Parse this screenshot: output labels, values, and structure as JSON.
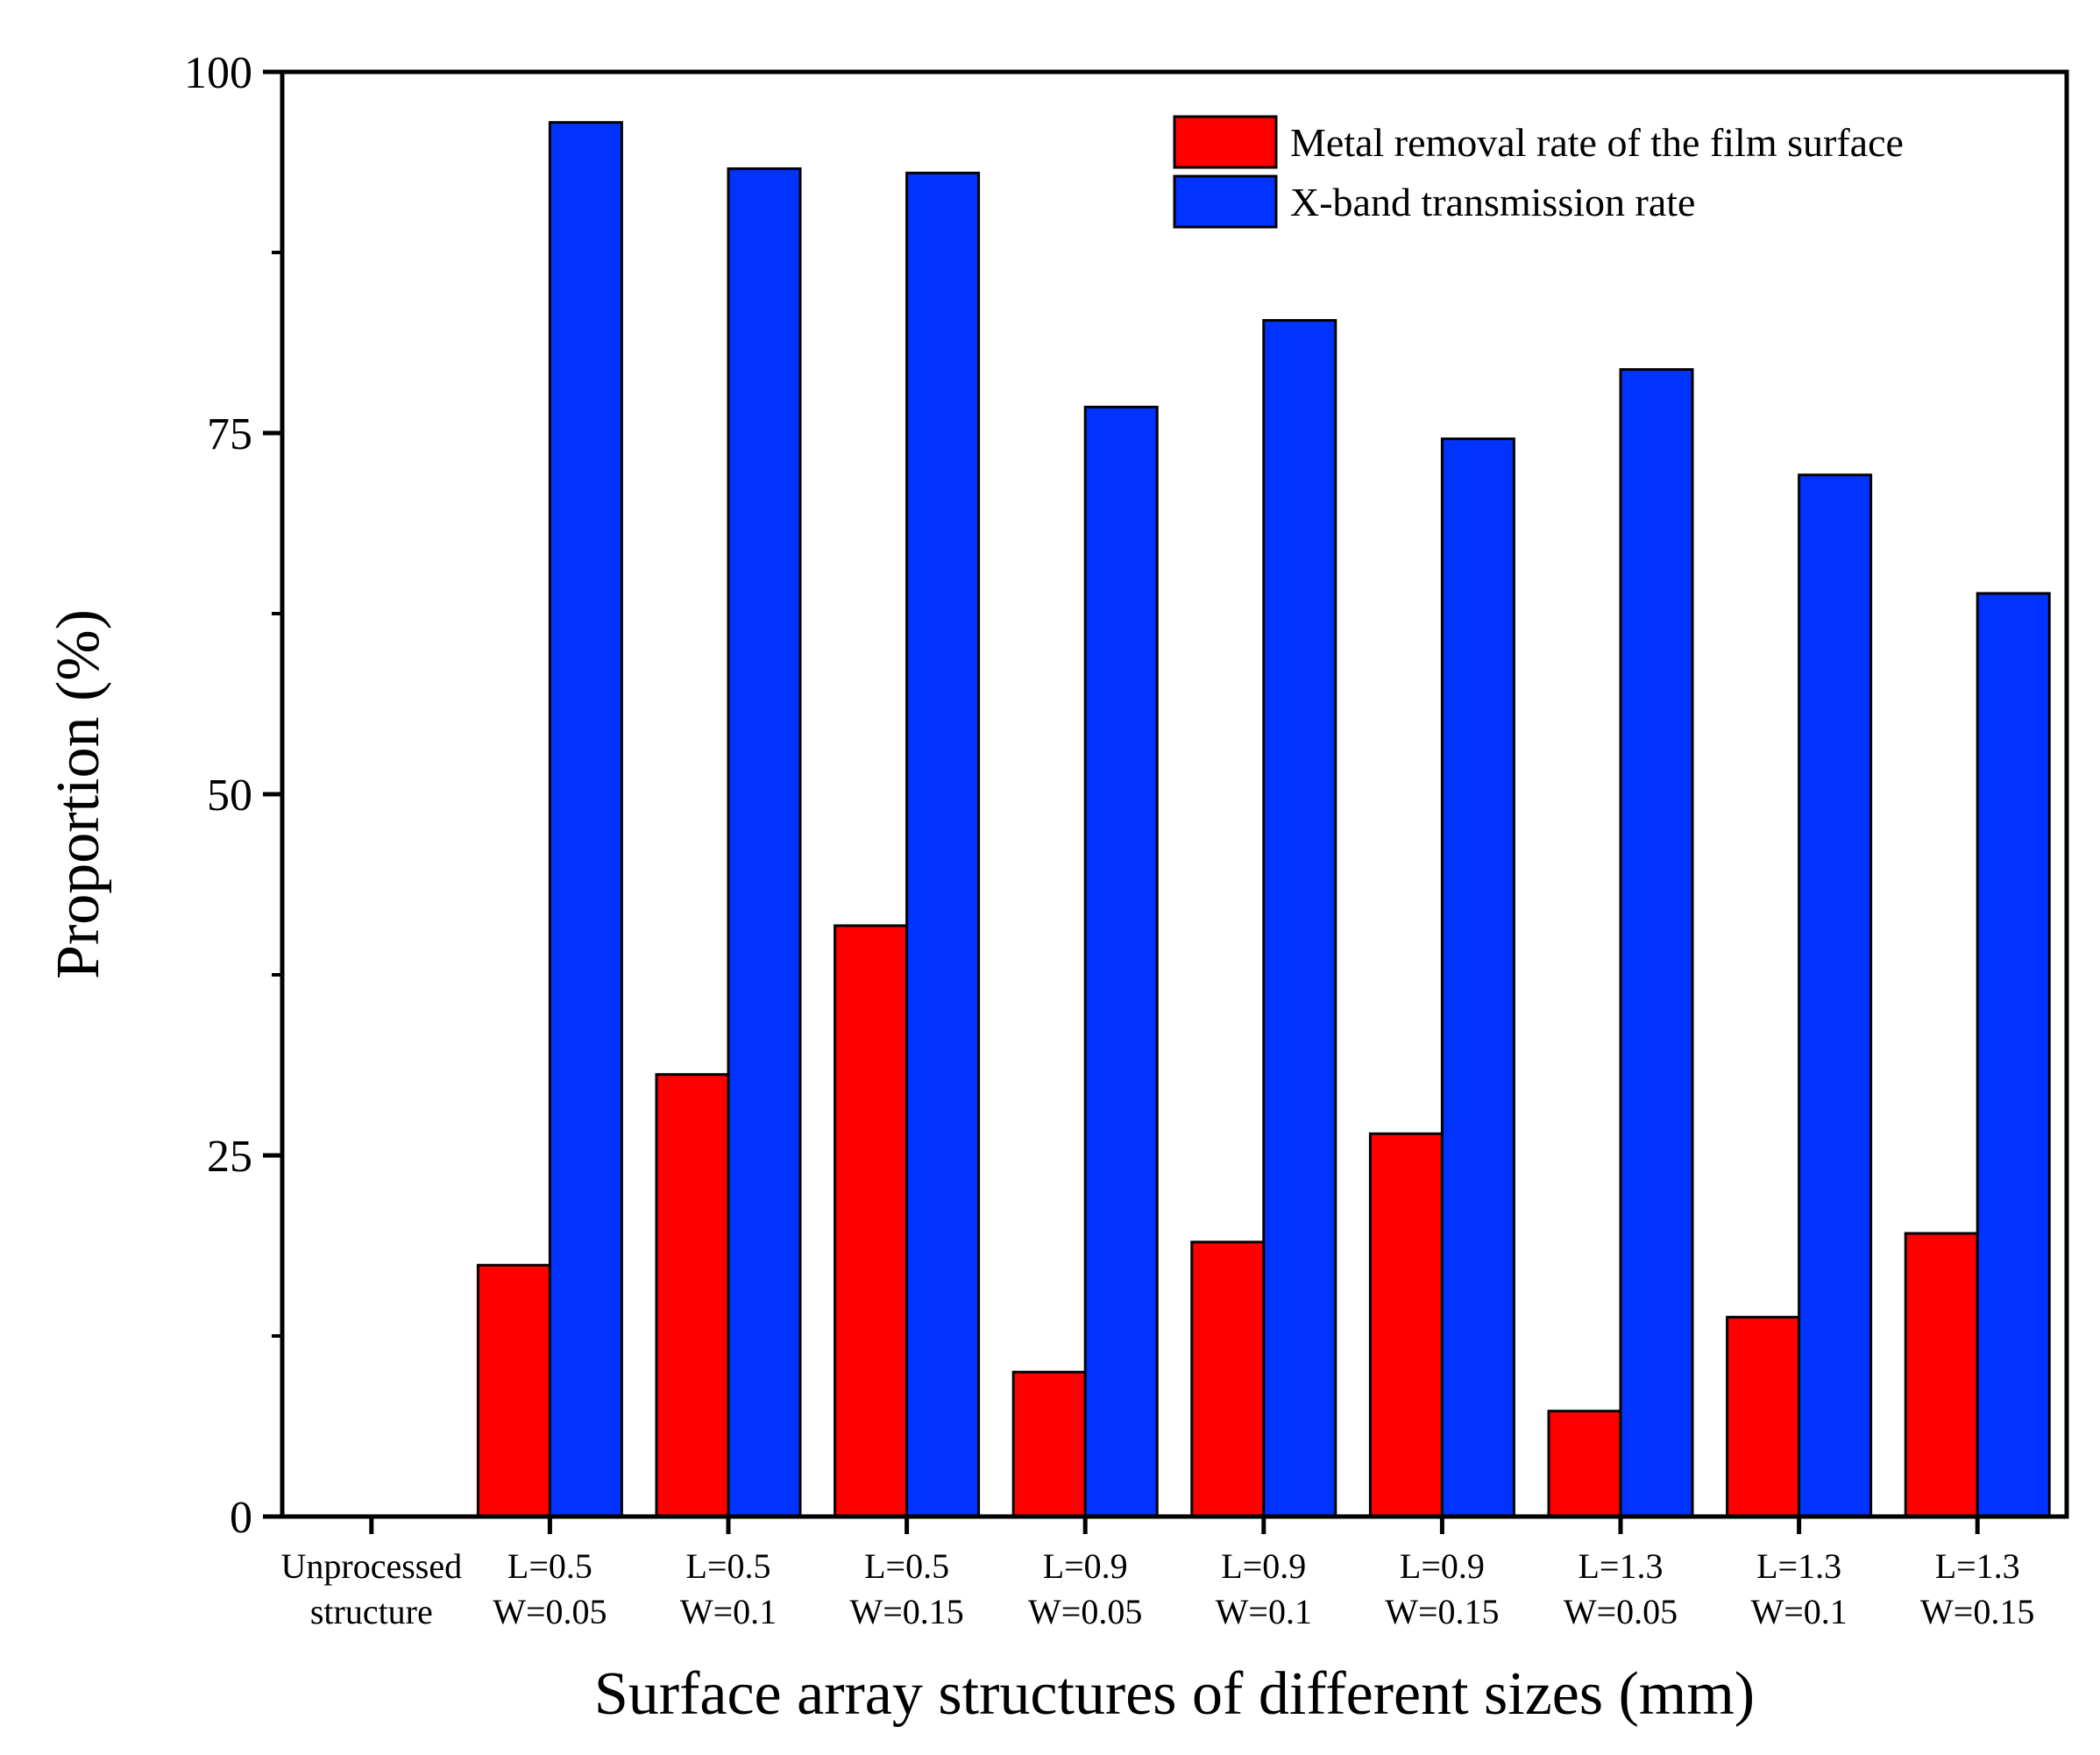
{
  "chart_data": {
    "type": "bar",
    "title": "",
    "xlabel": "Surface array structures of different sizes (mm)",
    "ylabel": "Proportion (%)",
    "ylim": [
      0,
      100
    ],
    "yticks": [
      0,
      25,
      50,
      75,
      100
    ],
    "grid": false,
    "legend_position": "top-right",
    "categories": [
      [
        "Unprocessed",
        "structure"
      ],
      [
        "L=0.5",
        "W=0.05"
      ],
      [
        "L=0.5",
        "W=0.1"
      ],
      [
        "L=0.5",
        "W=0.15"
      ],
      [
        "L=0.9",
        "W=0.05"
      ],
      [
        "L=0.9",
        "W=0.1"
      ],
      [
        "L=0.9",
        "W=0.15"
      ],
      [
        "L=1.3",
        "W=0.05"
      ],
      [
        "L=1.3",
        "W=0.1"
      ],
      [
        "L=1.3",
        "W=0.15"
      ]
    ],
    "series": [
      {
        "name": "Metal removal rate of the film surface",
        "color": "#ff0000",
        "values": [
          0,
          17.4,
          30.6,
          40.9,
          10.0,
          19.0,
          26.5,
          7.3,
          13.8,
          19.6
        ]
      },
      {
        "name": "X-band transmission rate",
        "color": "#0033ff",
        "values": [
          0,
          96.5,
          93.3,
          93.0,
          76.8,
          82.8,
          74.6,
          79.4,
          72.1,
          63.9
        ]
      }
    ]
  }
}
